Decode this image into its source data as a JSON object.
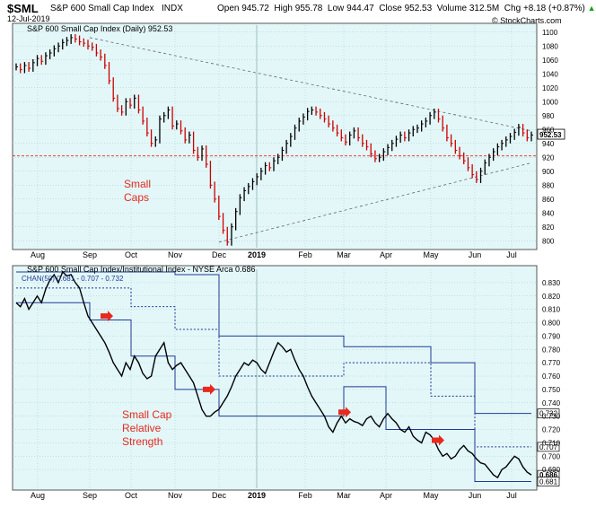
{
  "header": {
    "symbol": "$SML",
    "name": "S&P 600 Small Cap Index",
    "exchange": "INDX",
    "date": "12-Jul-2019",
    "open_label": "Open",
    "open": "945.72",
    "high_label": "High",
    "high": "955.78",
    "low_label": "Low",
    "low": "944.47",
    "close_label": "Close",
    "close": "952.53",
    "volume_label": "Volume",
    "volume": "312.5M",
    "chg_label": "Chg",
    "chg": "+8.18 (+0.87%)",
    "chg_icon": "up-triangle-icon",
    "credit": "© StockCharts.com"
  },
  "chart_data": [
    {
      "type": "ohlc",
      "legend": "S&P 600 Small Cap Index (Daily) 952.53",
      "last_value": "952.53",
      "annotation": [
        "Small",
        "Caps"
      ],
      "ylim": [
        790,
        1110
      ],
      "yticks": [
        800,
        820,
        840,
        860,
        880,
        900,
        920,
        940,
        960,
        980,
        1000,
        1020,
        1040,
        1060,
        1080,
        1100
      ],
      "x_labels": [
        "Aug",
        "Sep",
        "Oct",
        "Nov",
        "Dec",
        "2019",
        "Feb",
        "Mar",
        "Apr",
        "May",
        "Jun",
        "Jul"
      ],
      "hline": 922,
      "closes": [
        1050,
        1046,
        1052,
        1048,
        1056,
        1062,
        1058,
        1066,
        1070,
        1076,
        1080,
        1085,
        1088,
        1092,
        1090,
        1086,
        1084,
        1080,
        1078,
        1070,
        1064,
        1052,
        1030,
        1005,
        990,
        985,
        1000,
        995,
        1005,
        988,
        972,
        955,
        940,
        945,
        975,
        980,
        988,
        965,
        968,
        958,
        945,
        952,
        930,
        920,
        932,
        910,
        880,
        860,
        835,
        815,
        798,
        820,
        842,
        862,
        872,
        878,
        885,
        892,
        900,
        908,
        905,
        915,
        920,
        930,
        940,
        950,
        962,
        972,
        978,
        986,
        988,
        985,
        980,
        975,
        968,
        962,
        955,
        948,
        942,
        952,
        958,
        948,
        940,
        935,
        925,
        918,
        920,
        928,
        934,
        940,
        946,
        952,
        948,
        955,
        960,
        962,
        968,
        972,
        980,
        985,
        975,
        962,
        948,
        940,
        930,
        922,
        915,
        905,
        895,
        888,
        900,
        912,
        920,
        928,
        935,
        940,
        945,
        950,
        956,
        963,
        955,
        948,
        952
      ],
      "series": [
        {
          "name": "S&P 600 Small Cap Index (Daily)",
          "color": "#000000",
          "down_color": "#cc0000"
        }
      ],
      "trendlines": [
        {
          "from": [
            "Sep",
            1092
          ],
          "to": [
            "Jul",
            958
          ],
          "style": "dashed"
        },
        {
          "from": [
            "Dec",
            798
          ],
          "to": [
            "Jul",
            912
          ],
          "style": "dashed"
        }
      ]
    },
    {
      "type": "line",
      "legend": "S&P 600 Small Cap Index/Institutional Index - NYSE Arca 0.686",
      "legend2": "CHAN(50) 0.681 - 0.707 - 0.732",
      "annotation": [
        "Small Cap",
        "Relative",
        "Strength"
      ],
      "ylim": [
        0.676,
        0.84
      ],
      "yticks": [
        0.69,
        0.7,
        0.71,
        0.72,
        0.73,
        0.74,
        0.75,
        0.76,
        0.77,
        0.78,
        0.79,
        0.8,
        0.81,
        0.82,
        0.83
      ],
      "highlight_labels": [
        {
          "value": 0.732,
          "text": "0.732"
        },
        {
          "value": 0.707,
          "text": "0.707"
        },
        {
          "value": 0.686,
          "text": "0.686"
        },
        {
          "value": 0.681,
          "text": "0.681"
        }
      ],
      "x_labels": [
        "Aug",
        "Sep",
        "Oct",
        "Nov",
        "Dec",
        "2019",
        "Feb",
        "Mar",
        "Apr",
        "May",
        "Jun",
        "Jul"
      ],
      "ratio": [
        0.815,
        0.812,
        0.818,
        0.81,
        0.815,
        0.82,
        0.815,
        0.825,
        0.832,
        0.836,
        0.83,
        0.838,
        0.835,
        0.836,
        0.83,
        0.826,
        0.815,
        0.805,
        0.8,
        0.795,
        0.79,
        0.785,
        0.778,
        0.77,
        0.765,
        0.76,
        0.77,
        0.765,
        0.775,
        0.77,
        0.762,
        0.758,
        0.76,
        0.775,
        0.78,
        0.785,
        0.77,
        0.765,
        0.768,
        0.77,
        0.765,
        0.76,
        0.755,
        0.745,
        0.735,
        0.73,
        0.73,
        0.733,
        0.735,
        0.74,
        0.745,
        0.752,
        0.76,
        0.765,
        0.77,
        0.768,
        0.772,
        0.77,
        0.765,
        0.762,
        0.77,
        0.778,
        0.785,
        0.782,
        0.778,
        0.78,
        0.772,
        0.765,
        0.76,
        0.752,
        0.745,
        0.74,
        0.735,
        0.73,
        0.722,
        0.718,
        0.725,
        0.73,
        0.725,
        0.728,
        0.726,
        0.725,
        0.723,
        0.728,
        0.73,
        0.725,
        0.722,
        0.728,
        0.732,
        0.728,
        0.725,
        0.72,
        0.718,
        0.722,
        0.715,
        0.712,
        0.71,
        0.718,
        0.716,
        0.712,
        0.705,
        0.7,
        0.702,
        0.698,
        0.7,
        0.705,
        0.708,
        0.704,
        0.702,
        0.698,
        0.695,
        0.694,
        0.69,
        0.686,
        0.684,
        0.69,
        0.692,
        0.696,
        0.7,
        0.698,
        0.692,
        0.688,
        0.686
      ],
      "series": [
        {
          "name": "S&P 600 Small Cap Index/Institutional Index",
          "color": "#000000"
        },
        {
          "name": "CHAN(50)",
          "color": "#1f3a93"
        }
      ],
      "channel_upper": [
        {
          "from": "Aug",
          "value": 0.838
        },
        {
          "from": "Nov",
          "value": 0.836
        },
        {
          "from": "Dec",
          "value": 0.79
        },
        {
          "from": "Mar",
          "value": 0.782
        },
        {
          "from": "May",
          "value": 0.77
        },
        {
          "from": "Jun",
          "value": 0.732
        }
      ],
      "channel_mid": [
        {
          "from": "Aug",
          "value": 0.826
        },
        {
          "from": "Oct",
          "value": 0.812
        },
        {
          "from": "Nov",
          "value": 0.795
        },
        {
          "from": "Dec",
          "value": 0.76
        },
        {
          "from": "Mar",
          "value": 0.77
        },
        {
          "from": "May",
          "value": 0.745
        },
        {
          "from": "Jun",
          "value": 0.707
        }
      ],
      "channel_lower": [
        {
          "from": "Aug",
          "value": 0.815
        },
        {
          "from": "Sep",
          "value": 0.802
        },
        {
          "from": "Oct",
          "value": 0.775
        },
        {
          "from": "Nov",
          "value": 0.75
        },
        {
          "from": "Dec",
          "value": 0.73
        },
        {
          "from": "Mar",
          "value": 0.752
        },
        {
          "from": "Apr",
          "value": 0.72
        },
        {
          "from": "Jun",
          "value": 0.681
        }
      ],
      "arrows": [
        0.805,
        0.75,
        0.733,
        0.712
      ],
      "arrow_color": "#e8291c"
    }
  ]
}
